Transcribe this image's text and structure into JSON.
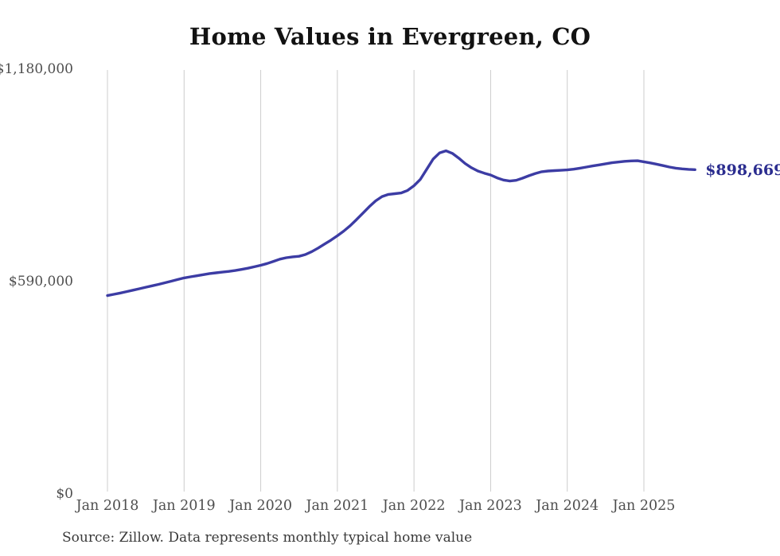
{
  "title": "Home Values in Evergreen, CO",
  "end_label": "$898,669",
  "source": "Source: Zillow. Data represents monthly typical home value",
  "colors": {
    "line": "#3c3ca4",
    "end_label": "#2b2d8f",
    "grid": "#cccccc",
    "axis_text": "#4e4e4e",
    "title_text": "#121212",
    "source_text": "#3a3a3a",
    "background": "#ffffff"
  },
  "chart_data": {
    "type": "line",
    "title": "Home Values in Evergreen, CO",
    "ylabel": "",
    "xlabel": "",
    "ylim": [
      0,
      1180000
    ],
    "grid": "vertical-only",
    "legend": "none",
    "end_annotation": "$898,669",
    "y_ticks": [
      {
        "label": "$0",
        "value": 0
      },
      {
        "label": "$590,000",
        "value": 590000
      },
      {
        "label": "$1,180,000",
        "value": 1180000
      }
    ],
    "x_ticks": [
      "Jan 2018",
      "Jan 2019",
      "Jan 2020",
      "Jan 2021",
      "Jan 2022",
      "Jan 2023",
      "Jan 2024",
      "Jan 2025"
    ],
    "x": [
      "Jan 2018",
      "Feb 2018",
      "Mar 2018",
      "Apr 2018",
      "May 2018",
      "Jun 2018",
      "Jul 2018",
      "Aug 2018",
      "Sep 2018",
      "Oct 2018",
      "Nov 2018",
      "Dec 2018",
      "Jan 2019",
      "Feb 2019",
      "Mar 2019",
      "Apr 2019",
      "May 2019",
      "Jun 2019",
      "Jul 2019",
      "Aug 2019",
      "Sep 2019",
      "Oct 2019",
      "Nov 2019",
      "Dec 2019",
      "Jan 2020",
      "Feb 2020",
      "Mar 2020",
      "Apr 2020",
      "May 2020",
      "Jun 2020",
      "Jul 2020",
      "Aug 2020",
      "Sep 2020",
      "Oct 2020",
      "Nov 2020",
      "Dec 2020",
      "Jan 2021",
      "Feb 2021",
      "Mar 2021",
      "Apr 2021",
      "May 2021",
      "Jun 2021",
      "Jul 2021",
      "Aug 2021",
      "Sep 2021",
      "Oct 2021",
      "Nov 2021",
      "Dec 2021",
      "Jan 2022",
      "Feb 2022",
      "Mar 2022",
      "Apr 2022",
      "May 2022",
      "Jun 2022",
      "Jul 2022",
      "Aug 2022",
      "Sep 2022",
      "Oct 2022",
      "Nov 2022",
      "Dec 2022",
      "Jan 2023",
      "Feb 2023",
      "Mar 2023",
      "Apr 2023",
      "May 2023",
      "Jun 2023",
      "Jul 2023",
      "Aug 2023",
      "Sep 2023",
      "Oct 2023",
      "Nov 2023",
      "Dec 2023",
      "Jan 2024",
      "Feb 2024",
      "Mar 2024",
      "Apr 2024",
      "May 2024",
      "Jun 2024",
      "Jul 2024",
      "Aug 2024",
      "Sep 2024",
      "Oct 2024",
      "Nov 2024",
      "Dec 2024",
      "Jan 2025",
      "Feb 2025",
      "Mar 2025",
      "Apr 2025",
      "May 2025",
      "Jun 2025",
      "Jul 2025",
      "Aug 2025",
      "Sep 2025"
    ],
    "values": [
      549000,
      552500,
      556000,
      560000,
      564000,
      568000,
      572000,
      576000,
      580000,
      584500,
      589000,
      593500,
      598000,
      601000,
      604000,
      607000,
      610000,
      612000,
      614000,
      616000,
      618500,
      621500,
      625000,
      629000,
      633000,
      638000,
      644000,
      650000,
      654000,
      656500,
      658000,
      663000,
      671000,
      681000,
      692000,
      703000,
      715000,
      728000,
      743000,
      760000,
      778000,
      796000,
      812000,
      824000,
      830000,
      832000,
      834000,
      841000,
      854000,
      872000,
      900000,
      928000,
      945000,
      951000,
      944000,
      931000,
      916000,
      904000,
      895000,
      889000,
      884000,
      876000,
      870000,
      867000,
      869000,
      875000,
      882000,
      888000,
      893000,
      895000,
      896000,
      897000,
      898000,
      900000,
      903000,
      906000,
      909000,
      912000,
      915000,
      918000,
      920000,
      922000,
      923000,
      923500,
      920500,
      917500,
      914000,
      910000,
      906000,
      903000,
      901000,
      899500,
      898669
    ]
  }
}
